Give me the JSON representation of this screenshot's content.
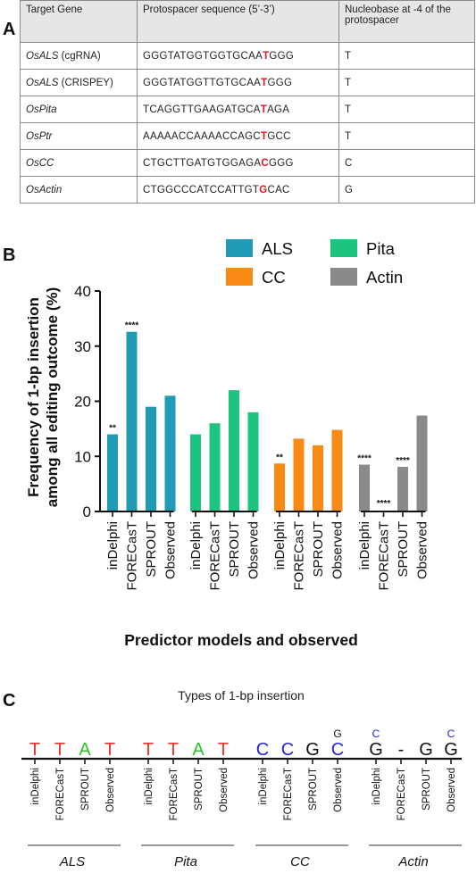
{
  "panel_labels": {
    "a": "A",
    "b": "B",
    "c": "C"
  },
  "table": {
    "headers": [
      "Target Gene",
      "Protospacer sequence (5’-3’)",
      "Nucleobase at -4 of the protospacer"
    ],
    "rows": [
      {
        "gene": "OsALS",
        "suffix": " (cgRNA)",
        "seq_pre": "GGGTATGGTGGTGCAA",
        "seq_hl": "T",
        "seq_post": "GGG",
        "base": "T"
      },
      {
        "gene": "OsALS",
        "suffix": " (CRISPEY)",
        "seq_pre": "GGGTATGGTTGTGCAA",
        "seq_hl": "T",
        "seq_post": "GGG",
        "base": "T"
      },
      {
        "gene": "OsPita",
        "suffix": "",
        "seq_pre": "TCAGGTTGAAGATGCA",
        "seq_hl": "T",
        "seq_post": "AGA",
        "base": "T"
      },
      {
        "gene": "OsPtr",
        "suffix": "",
        "seq_pre": "AAAAACCAAAACCAGC",
        "seq_hl": "T",
        "seq_post": "GCC",
        "base": "T"
      },
      {
        "gene": "OsCC",
        "suffix": "",
        "seq_pre": "CTGCTTGATGTGGAGA",
        "seq_hl": "C",
        "seq_post": "GGG",
        "base": "C"
      },
      {
        "gene": "OsActin",
        "suffix": "",
        "seq_pre": "CTGGCCCATCCATTGT",
        "seq_hl": "G",
        "seq_post": "CAC",
        "base": "G"
      }
    ]
  },
  "chart_data": {
    "type": "bar",
    "ylabel_line1": "Frequency of 1-bp insertion",
    "ylabel_line2": "among all editing outcome (%)",
    "xlabel": "Predictor models and observed",
    "ylim": [
      0,
      40
    ],
    "yticks": [
      0,
      10,
      20,
      30,
      40
    ],
    "legend_position": "top",
    "categories": [
      "inDelphi",
      "FORECasT",
      "SPROUT",
      "Observed"
    ],
    "series": [
      {
        "name": "ALS",
        "color": "#1f9bb5",
        "values": [
          14,
          32.6,
          19,
          21
        ],
        "annotations": [
          "**",
          "****",
          "",
          ""
        ]
      },
      {
        "name": "Pita",
        "color": "#1cc47f",
        "values": [
          14,
          16,
          22,
          18
        ],
        "annotations": [
          "",
          "",
          "",
          ""
        ]
      },
      {
        "name": "CC",
        "color": "#f98a14",
        "values": [
          8.7,
          13.2,
          12,
          14.8
        ],
        "annotations": [
          "**",
          "",
          "",
          ""
        ]
      },
      {
        "name": "Actin",
        "color": "#8a8a8a",
        "values": [
          8.5,
          0,
          8.1,
          17.4
        ],
        "annotations": [
          "****",
          "****",
          "****",
          ""
        ]
      }
    ]
  },
  "panel_c": {
    "title": "Types of 1-bp insertion",
    "models": [
      "inDelphi",
      "FORECasT",
      "SPROUT",
      "Observed"
    ],
    "groups": [
      {
        "name": "ALS",
        "items": [
          {
            "base": "T",
            "color": "#e8322a",
            "sup": ""
          },
          {
            "base": "T",
            "color": "#e8322a",
            "sup": ""
          },
          {
            "base": "A",
            "color": "#2bbf2b",
            "sup": ""
          },
          {
            "base": "T",
            "color": "#e8322a",
            "sup": ""
          }
        ]
      },
      {
        "name": "Pita",
        "items": [
          {
            "base": "T",
            "color": "#e8322a",
            "sup": ""
          },
          {
            "base": "T",
            "color": "#e8322a",
            "sup": ""
          },
          {
            "base": "A",
            "color": "#2bbf2b",
            "sup": ""
          },
          {
            "base": "T",
            "color": "#e8322a",
            "sup": ""
          }
        ]
      },
      {
        "name": "CC",
        "items": [
          {
            "base": "C",
            "color": "#2323d6",
            "sup": ""
          },
          {
            "base": "C",
            "color": "#2323d6",
            "sup": ""
          },
          {
            "base": "G",
            "color": "#111111",
            "sup": ""
          },
          {
            "base": "C",
            "color": "#2323d6",
            "sup": "G",
            "sup_color": "#111111"
          }
        ]
      },
      {
        "name": "Actin",
        "items": [
          {
            "base": "G",
            "color": "#111111",
            "sup": "C",
            "sup_color": "#2323d6"
          },
          {
            "base": "-",
            "color": "#111111",
            "sup": ""
          },
          {
            "base": "G",
            "color": "#111111",
            "sup": ""
          },
          {
            "base": "G",
            "color": "#111111",
            "sup": "C",
            "sup_color": "#2323d6"
          }
        ]
      }
    ]
  }
}
